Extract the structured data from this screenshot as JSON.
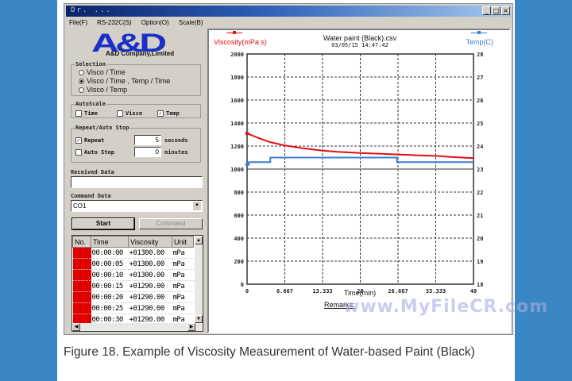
{
  "window": {
    "title": "Dr. ...",
    "controls": [
      "_",
      "□",
      "×"
    ]
  },
  "menu": [
    "File(F)",
    "RS-232C(S)",
    "Option(O)",
    "Scale(B)"
  ],
  "logo": {
    "brand": "A&D",
    "company": "A&D Company,Limited"
  },
  "selection": {
    "label": "Selection",
    "options": [
      {
        "label": "Visco / Time",
        "selected": false
      },
      {
        "label": "Visco / Time , Temp / Time",
        "selected": true
      },
      {
        "label": "Visco / Temp",
        "selected": false
      }
    ]
  },
  "autoscale": {
    "label": "AutoScale",
    "items": [
      {
        "label": "Time",
        "checked": false
      },
      {
        "label": "Visco",
        "checked": false
      },
      {
        "label": "Temp",
        "checked": true
      }
    ]
  },
  "repeat": {
    "label": "Repeat/Auto Stop",
    "repeat_label": "Repeat",
    "repeat_checked": true,
    "repeat_value": "5",
    "repeat_unit": "seconds",
    "autostop_label": "Auto Stop",
    "autostop_checked": false,
    "autostop_value": "0",
    "autostop_unit": "minutes"
  },
  "received": {
    "label": "Received Data",
    "value": ""
  },
  "command": {
    "label": "Command Data",
    "value": "CO1",
    "dropdown_icon": "▼"
  },
  "buttons": {
    "start": "Start",
    "command": "Command"
  },
  "table": {
    "headers": [
      "No.",
      "Time",
      "Viscosity",
      "Unit"
    ],
    "rows": [
      {
        "no": "1",
        "time": "00:00:00",
        "visc": "+01300.00",
        "unit": "mPa"
      },
      {
        "no": "2",
        "time": "00:00:05",
        "visc": "+01300.00",
        "unit": "mPa"
      },
      {
        "no": "3",
        "time": "00:00:10",
        "visc": "+01300.00",
        "unit": "mPa"
      },
      {
        "no": "4",
        "time": "00:00:15",
        "visc": "+01290.00",
        "unit": "mPa"
      },
      {
        "no": "5",
        "time": "00:00:20",
        "visc": "+01290.00",
        "unit": "mPa"
      },
      {
        "no": "6",
        "time": "00:00:25",
        "visc": "+01290.00",
        "unit": "mPa"
      },
      {
        "no": "7",
        "time": "00:00:30",
        "visc": "+01290.00",
        "unit": "mPa"
      }
    ]
  },
  "chart": {
    "title": "Water paint (Black).csv",
    "datetime": "03/05/15  14:47:42",
    "left_label": "Viscosity(mPa s)",
    "right_label": "Temp(C)",
    "xlabel": "Time(min)",
    "remarks": "Remarks:",
    "colors": {
      "visc": "#e01010",
      "temp": "#3a7fd0"
    }
  },
  "chart_data": {
    "type": "line",
    "title": "Water paint (Black).csv",
    "subtitle": "03/05/15 14:47:42",
    "xlabel": "Time(min)",
    "ylabel": "Viscosity(mPa s)",
    "y2label": "Temp(C)",
    "x_ticks": [
      "0",
      "6.667",
      "13.333",
      "20",
      "26.667",
      "33.333",
      "40"
    ],
    "y_ticks": [
      0,
      200,
      400,
      600,
      800,
      1000,
      1200,
      1400,
      1600,
      1800,
      2000
    ],
    "y2_ticks": [
      18,
      19,
      20,
      21,
      22,
      23,
      24,
      25,
      26,
      27,
      28
    ],
    "xlim": [
      0,
      40
    ],
    "ylim": [
      0,
      2000
    ],
    "y2lim": [
      18,
      28
    ],
    "grid": true,
    "series": [
      {
        "name": "Viscosity",
        "axis": "left",
        "color": "#e01010",
        "x": [
          0,
          2,
          4,
          6.667,
          10,
          13.333,
          16,
          20,
          25,
          30,
          33.333,
          36,
          40
        ],
        "values": [
          1310,
          1270,
          1235,
          1205,
          1180,
          1160,
          1150,
          1140,
          1130,
          1120,
          1115,
          1105,
          1095
        ]
      },
      {
        "name": "Temp",
        "axis": "right",
        "color": "#3a7fd0",
        "x": [
          0,
          0.3,
          4,
          4.1,
          26,
          26.5,
          40
        ],
        "values": [
          23.2,
          23.3,
          23.3,
          23.5,
          23.5,
          23.3,
          23.3
        ]
      }
    ]
  },
  "watermark": "www.MyFileCR.com",
  "caption": "Figure 18. Example of Viscosity Measurement of Water-based Paint (Black)"
}
